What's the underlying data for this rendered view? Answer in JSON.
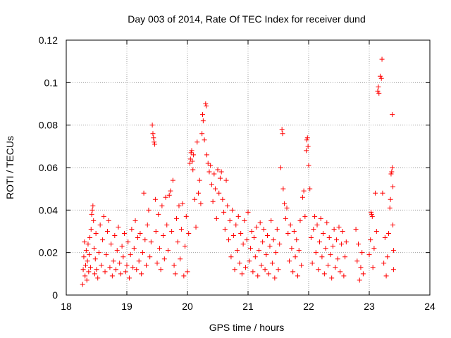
{
  "chart_data": {
    "type": "scatter",
    "title": "Day 003 of 2014, Rate Of TEC Index for receiver dund",
    "xlabel": "GPS time / hours",
    "ylabel": "ROTI / TECUs",
    "xlim": [
      18,
      24
    ],
    "ylim": [
      0,
      0.12
    ],
    "xticks": [
      18,
      19,
      20,
      21,
      22,
      23,
      24
    ],
    "xtick_labels": [
      "18",
      "19",
      "20",
      "21",
      "22",
      "23",
      "24"
    ],
    "yticks": [
      0,
      0.02,
      0.04,
      0.06,
      0.08,
      0.1,
      0.12
    ],
    "ytick_labels": [
      "0",
      "0.02",
      "0.04",
      "0.06",
      "0.08",
      "0.1",
      "0.12"
    ],
    "grid": true,
    "marker": "+",
    "color": "#ff0000",
    "series": [
      {
        "name": "ROTI",
        "points": [
          [
            18.27,
            0.005
          ],
          [
            18.28,
            0.012
          ],
          [
            18.29,
            0.018
          ],
          [
            18.3,
            0.025
          ],
          [
            18.31,
            0.009
          ],
          [
            18.32,
            0.014
          ],
          [
            18.33,
            0.021
          ],
          [
            18.34,
            0.007
          ],
          [
            18.35,
            0.016
          ],
          [
            18.36,
            0.024
          ],
          [
            18.37,
            0.011
          ],
          [
            18.38,
            0.019
          ],
          [
            18.39,
            0.027
          ],
          [
            18.4,
            0.013
          ],
          [
            18.41,
            0.031
          ],
          [
            18.42,
            0.038
          ],
          [
            18.43,
            0.04
          ],
          [
            18.44,
            0.042
          ],
          [
            18.45,
            0.035
          ],
          [
            18.46,
            0.022
          ],
          [
            18.47,
            0.01
          ],
          [
            18.48,
            0.017
          ],
          [
            18.49,
            0.029
          ],
          [
            18.5,
            0.012
          ],
          [
            18.52,
            0.008
          ],
          [
            18.54,
            0.02
          ],
          [
            18.56,
            0.033
          ],
          [
            18.58,
            0.014
          ],
          [
            18.6,
            0.026
          ],
          [
            18.62,
            0.037
          ],
          [
            18.64,
            0.011
          ],
          [
            18.66,
            0.019
          ],
          [
            18.68,
            0.03
          ],
          [
            18.7,
            0.035
          ],
          [
            18.72,
            0.013
          ],
          [
            18.74,
            0.024
          ],
          [
            18.76,
            0.009
          ],
          [
            18.78,
            0.016
          ],
          [
            18.8,
            0.028
          ],
          [
            18.82,
            0.012
          ],
          [
            18.84,
            0.021
          ],
          [
            18.86,
            0.032
          ],
          [
            18.88,
            0.015
          ],
          [
            18.9,
            0.01
          ],
          [
            18.92,
            0.023
          ],
          [
            18.94,
            0.018
          ],
          [
            18.96,
            0.029
          ],
          [
            18.98,
            0.011
          ],
          [
            19.0,
            0.014
          ],
          [
            19.02,
            0.025
          ],
          [
            19.04,
            0.008
          ],
          [
            19.06,
            0.019
          ],
          [
            19.08,
            0.031
          ],
          [
            19.1,
            0.013
          ],
          [
            19.12,
            0.022
          ],
          [
            19.14,
            0.035
          ],
          [
            19.16,
            0.012
          ],
          [
            19.18,
            0.027
          ],
          [
            19.2,
            0.016
          ],
          [
            19.22,
            0.029
          ],
          [
            19.24,
            0.01
          ],
          [
            19.26,
            0.02
          ],
          [
            19.28,
            0.048
          ],
          [
            19.3,
            0.026
          ],
          [
            19.32,
            0.014
          ],
          [
            19.34,
            0.033
          ],
          [
            19.36,
            0.04
          ],
          [
            19.38,
            0.018
          ],
          [
            19.4,
            0.025
          ],
          [
            19.42,
            0.08
          ],
          [
            19.43,
            0.076
          ],
          [
            19.44,
            0.074
          ],
          [
            19.45,
            0.072
          ],
          [
            19.46,
            0.071
          ],
          [
            19.47,
            0.045
          ],
          [
            19.48,
            0.03
          ],
          [
            19.5,
            0.015
          ],
          [
            19.52,
            0.038
          ],
          [
            19.54,
            0.022
          ],
          [
            19.56,
            0.012
          ],
          [
            19.58,
            0.042
          ],
          [
            19.6,
            0.028
          ],
          [
            19.62,
            0.017
          ],
          [
            19.64,
            0.046
          ],
          [
            19.66,
            0.033
          ],
          [
            19.68,
            0.021
          ],
          [
            19.7,
            0.047
          ],
          [
            19.72,
            0.049
          ],
          [
            19.74,
            0.03
          ],
          [
            19.76,
            0.054
          ],
          [
            19.78,
            0.014
          ],
          [
            19.8,
            0.01
          ],
          [
            19.82,
            0.036
          ],
          [
            19.84,
            0.025
          ],
          [
            19.86,
            0.042
          ],
          [
            19.88,
            0.017
          ],
          [
            19.9,
            0.031
          ],
          [
            19.92,
            0.043
          ],
          [
            19.94,
            0.009
          ],
          [
            19.96,
            0.023
          ],
          [
            19.98,
            0.037
          ],
          [
            20.0,
            0.011
          ],
          [
            20.02,
            0.029
          ],
          [
            20.04,
            0.062
          ],
          [
            20.05,
            0.064
          ],
          [
            20.06,
            0.067
          ],
          [
            20.07,
            0.068
          ],
          [
            20.08,
            0.063
          ],
          [
            20.09,
            0.059
          ],
          [
            20.1,
            0.066
          ],
          [
            20.12,
            0.045
          ],
          [
            20.14,
            0.032
          ],
          [
            20.16,
            0.072
          ],
          [
            20.18,
            0.048
          ],
          [
            20.2,
            0.054
          ],
          [
            20.22,
            0.043
          ],
          [
            20.24,
            0.076
          ],
          [
            20.25,
            0.085
          ],
          [
            20.26,
            0.082
          ],
          [
            20.28,
            0.073
          ],
          [
            20.3,
            0.09
          ],
          [
            20.31,
            0.089
          ],
          [
            20.32,
            0.066
          ],
          [
            20.34,
            0.062
          ],
          [
            20.36,
            0.058
          ],
          [
            20.38,
            0.061
          ],
          [
            20.4,
            0.052
          ],
          [
            20.42,
            0.044
          ],
          [
            20.44,
            0.057
          ],
          [
            20.46,
            0.05
          ],
          [
            20.48,
            0.036
          ],
          [
            20.5,
            0.059
          ],
          [
            20.52,
            0.048
          ],
          [
            20.54,
            0.055
          ],
          [
            20.56,
            0.058
          ],
          [
            20.58,
            0.045
          ],
          [
            20.6,
            0.039
          ],
          [
            20.62,
            0.031
          ],
          [
            20.64,
            0.054
          ],
          [
            20.66,
            0.042
          ],
          [
            20.68,
            0.026
          ],
          [
            20.7,
            0.035
          ],
          [
            20.72,
            0.018
          ],
          [
            20.74,
            0.04
          ],
          [
            20.76,
            0.028
          ],
          [
            20.78,
            0.012
          ],
          [
            20.8,
            0.033
          ],
          [
            20.82,
            0.021
          ],
          [
            20.84,
            0.037
          ],
          [
            20.86,
            0.015
          ],
          [
            20.88,
            0.029
          ],
          [
            20.9,
            0.01
          ],
          [
            20.92,
            0.024
          ],
          [
            20.94,
            0.035
          ],
          [
            20.96,
            0.013
          ],
          [
            20.98,
            0.026
          ],
          [
            21.0,
            0.039
          ],
          [
            21.02,
            0.016
          ],
          [
            21.04,
            0.022
          ],
          [
            21.06,
            0.03
          ],
          [
            21.08,
            0.011
          ],
          [
            21.1,
            0.027
          ],
          [
            21.12,
            0.018
          ],
          [
            21.14,
            0.032
          ],
          [
            21.16,
            0.009
          ],
          [
            21.18,
            0.021
          ],
          [
            21.2,
            0.034
          ],
          [
            21.22,
            0.014
          ],
          [
            21.24,
            0.025
          ],
          [
            21.26,
            0.031
          ],
          [
            21.28,
            0.012
          ],
          [
            21.3,
            0.019
          ],
          [
            21.32,
            0.028
          ],
          [
            21.34,
            0.01
          ],
          [
            21.36,
            0.023
          ],
          [
            21.38,
            0.035
          ],
          [
            21.4,
            0.015
          ],
          [
            21.42,
            0.026
          ],
          [
            21.44,
            0.008
          ],
          [
            21.46,
            0.02
          ],
          [
            21.48,
            0.031
          ],
          [
            21.5,
            0.012
          ],
          [
            21.52,
            0.024
          ],
          [
            21.54,
            0.06
          ],
          [
            21.56,
            0.078
          ],
          [
            21.57,
            0.076
          ],
          [
            21.58,
            0.05
          ],
          [
            21.6,
            0.043
          ],
          [
            21.62,
            0.036
          ],
          [
            21.64,
            0.041
          ],
          [
            21.66,
            0.029
          ],
          [
            21.68,
            0.016
          ],
          [
            21.7,
            0.033
          ],
          [
            21.72,
            0.022
          ],
          [
            21.74,
            0.011
          ],
          [
            21.76,
            0.03
          ],
          [
            21.78,
            0.018
          ],
          [
            21.8,
            0.026
          ],
          [
            21.82,
            0.009
          ],
          [
            21.84,
            0.021
          ],
          [
            21.86,
            0.035
          ],
          [
            21.88,
            0.014
          ],
          [
            21.9,
            0.046
          ],
          [
            21.92,
            0.049
          ],
          [
            21.94,
            0.037
          ],
          [
            21.96,
            0.068
          ],
          [
            21.97,
            0.073
          ],
          [
            21.98,
            0.074
          ],
          [
            21.99,
            0.07
          ],
          [
            22.0,
            0.061
          ],
          [
            22.02,
            0.05
          ],
          [
            22.04,
            0.027
          ],
          [
            22.06,
            0.015
          ],
          [
            22.08,
            0.031
          ],
          [
            22.1,
            0.037
          ],
          [
            22.12,
            0.02
          ],
          [
            22.14,
            0.033
          ],
          [
            22.16,
            0.012
          ],
          [
            22.18,
            0.025
          ],
          [
            22.2,
            0.036
          ],
          [
            22.22,
            0.018
          ],
          [
            22.24,
            0.029
          ],
          [
            22.26,
            0.01
          ],
          [
            22.28,
            0.022
          ],
          [
            22.3,
            0.034
          ],
          [
            22.32,
            0.014
          ],
          [
            22.34,
            0.027
          ],
          [
            22.36,
            0.019
          ],
          [
            22.38,
            0.008
          ],
          [
            22.4,
            0.023
          ],
          [
            22.42,
            0.031
          ],
          [
            22.44,
            0.013
          ],
          [
            22.46,
            0.026
          ],
          [
            22.48,
            0.017
          ],
          [
            22.5,
            0.032
          ],
          [
            22.52,
            0.011
          ],
          [
            22.54,
            0.024
          ],
          [
            22.56,
            0.03
          ],
          [
            22.58,
            0.009
          ],
          [
            22.6,
            0.018
          ],
          [
            22.62,
            0.025
          ],
          [
            22.78,
            0.031
          ],
          [
            22.8,
            0.016
          ],
          [
            22.82,
            0.024
          ],
          [
            22.84,
            0.007
          ],
          [
            22.86,
            0.013
          ],
          [
            22.88,
            0.02
          ],
          [
            22.9,
            0.01
          ],
          [
            23.0,
            0.019
          ],
          [
            23.02,
            0.026
          ],
          [
            23.03,
            0.039
          ],
          [
            23.04,
            0.038
          ],
          [
            23.05,
            0.037
          ],
          [
            23.06,
            0.013
          ],
          [
            23.08,
            0.022
          ],
          [
            23.1,
            0.048
          ],
          [
            23.12,
            0.03
          ],
          [
            23.14,
            0.096
          ],
          [
            23.15,
            0.098
          ],
          [
            23.16,
            0.095
          ],
          [
            23.18,
            0.103
          ],
          [
            23.2,
            0.102
          ],
          [
            23.21,
            0.111
          ],
          [
            23.22,
            0.048
          ],
          [
            23.24,
            0.015
          ],
          [
            23.26,
            0.027
          ],
          [
            23.28,
            0.009
          ],
          [
            23.3,
            0.018
          ],
          [
            23.32,
            0.029
          ],
          [
            23.34,
            0.041
          ],
          [
            23.35,
            0.045
          ],
          [
            23.36,
            0.057
          ],
          [
            23.37,
            0.058
          ],
          [
            23.38,
            0.06
          ],
          [
            23.38,
            0.085
          ],
          [
            23.39,
            0.051
          ],
          [
            23.39,
            0.033
          ],
          [
            23.4,
            0.012
          ],
          [
            23.4,
            0.021
          ]
        ]
      }
    ]
  }
}
